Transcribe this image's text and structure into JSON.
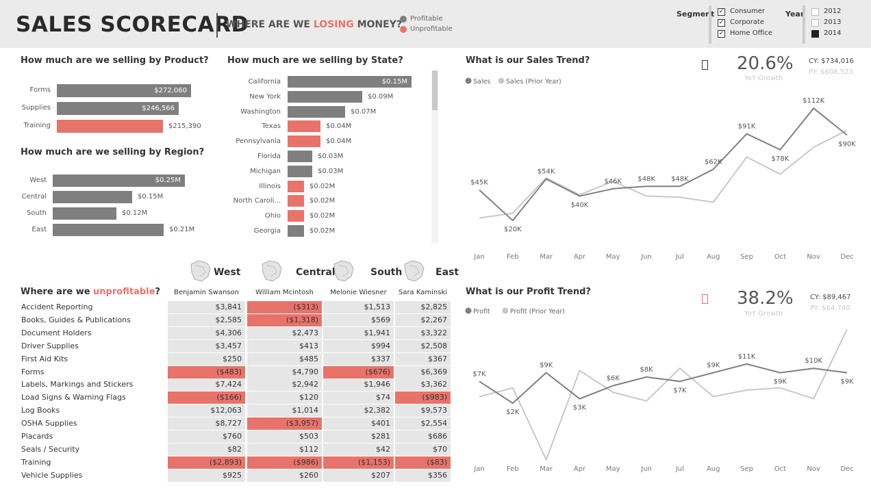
{
  "header": {
    "title": "SALES SCORECARD",
    "subtitle_prefix": "WHERE ARE WE ",
    "subtitle_highlight": "LOSING",
    "subtitle_suffix": " MONEY?",
    "legend": [
      {
        "label": "Profitable",
        "color": "#7f7f7f"
      },
      {
        "label": "Unprofitable",
        "color": "#e8736a"
      }
    ]
  },
  "slicers": {
    "segment": {
      "label": "Segment",
      "options": [
        {
          "label": "Consumer",
          "checked": true
        },
        {
          "label": "Corporate",
          "checked": true
        },
        {
          "label": "Home Office",
          "checked": true
        }
      ]
    },
    "year": {
      "label": "Year",
      "options": [
        {
          "label": "2012",
          "checked": false
        },
        {
          "label": "2013",
          "checked": false
        },
        {
          "label": "2014",
          "checked": true
        }
      ]
    }
  },
  "colors": {
    "profitable": "#7f7f7f",
    "unprofitable": "#e8736a",
    "prior_year": "#c8c8c8",
    "accent": "#e8736a"
  },
  "product": {
    "title": "How much are we selling by Product?",
    "items": [
      {
        "label": "Forms",
        "value": 272060,
        "display": "$272,060",
        "profitable": true
      },
      {
        "label": "Supplies",
        "value": 246566,
        "display": "$246,566",
        "profitable": true
      },
      {
        "label": "Training",
        "value": 215390,
        "display": "$215,390",
        "profitable": false
      }
    ]
  },
  "region": {
    "title": "How much are we selling by Region?",
    "items": [
      {
        "label": "West",
        "value": 0.25,
        "display": "$0.25M",
        "profitable": true
      },
      {
        "label": "Central",
        "value": 0.15,
        "display": "$0.15M",
        "profitable": true
      },
      {
        "label": "South",
        "value": 0.12,
        "display": "$0.12M",
        "profitable": true
      },
      {
        "label": "East",
        "value": 0.21,
        "display": "$0.21M",
        "profitable": true
      }
    ]
  },
  "state": {
    "title": "How much are we selling by State?",
    "items": [
      {
        "label": "California",
        "value": 0.15,
        "display": "$0.15M",
        "profitable": true
      },
      {
        "label": "New York",
        "value": 0.09,
        "display": "$0.09M",
        "profitable": true
      },
      {
        "label": "Washington",
        "value": 0.07,
        "display": "$0.07M",
        "profitable": true
      },
      {
        "label": "Texas",
        "value": 0.04,
        "display": "$0.04M",
        "profitable": false
      },
      {
        "label": "Pennsylvania",
        "value": 0.04,
        "display": "$0.04M",
        "profitable": false
      },
      {
        "label": "Florida",
        "value": 0.03,
        "display": "$0.03M",
        "profitable": true
      },
      {
        "label": "Michigan",
        "value": 0.03,
        "display": "$0.03M",
        "profitable": true
      },
      {
        "label": "Illinois",
        "value": 0.02,
        "display": "$0.02M",
        "profitable": false
      },
      {
        "label": "North Caroli...",
        "value": 0.02,
        "display": "$0.02M",
        "profitable": false
      },
      {
        "label": "Ohio",
        "value": 0.02,
        "display": "$0.02M",
        "profitable": false
      },
      {
        "label": "Georgia",
        "value": 0.02,
        "display": "$0.02M",
        "profitable": true
      }
    ]
  },
  "chart_data": [
    {
      "type": "line",
      "title": "What is our Sales Trend?",
      "x": [
        "Jan",
        "Feb",
        "Mar",
        "Apr",
        "May",
        "Jun",
        "Jul",
        "Aug",
        "Sep",
        "Oct",
        "Nov",
        "Dec"
      ],
      "series": [
        {
          "name": "Sales",
          "values": [
            45,
            20,
            54,
            40,
            46,
            48,
            48,
            62,
            91,
            78,
            112,
            90
          ],
          "labels": [
            "$45K",
            "$20K",
            "$54K",
            "$40K",
            "$46K",
            "$48K",
            "$48K",
            "$62K",
            "$91K",
            "$78K",
            "$112K",
            "$90K"
          ]
        },
        {
          "name": "Sales (Prior Year)",
          "values": [
            22,
            26,
            55,
            41,
            52,
            40,
            39,
            35,
            72,
            58,
            80,
            94
          ]
        }
      ],
      "ylim": [
        10,
        125
      ],
      "kpi": {
        "value": "20.6%",
        "label": "YoY Growth",
        "cy": "CY: $734,016",
        "py": "PY: $608,523"
      }
    },
    {
      "type": "line",
      "title": "What is our Profit Trend?",
      "x": [
        "Jan",
        "Feb",
        "Mar",
        "Apr",
        "May",
        "Jun",
        "Jul",
        "Aug",
        "Sep",
        "Oct",
        "Nov",
        "Dec"
      ],
      "series": [
        {
          "name": "Profit",
          "values": [
            7,
            2,
            9,
            3,
            6,
            8,
            7,
            9,
            11,
            9,
            10,
            9
          ],
          "labels": [
            "$7K",
            "$2K",
            "$9K",
            "$3K",
            "$6K",
            "$8K",
            "$7K",
            "$9K",
            "$11K",
            "$9K",
            "$10K",
            "$9K"
          ]
        },
        {
          "name": "Profit (Prior Year)",
          "values": [
            3.5,
            5.5,
            -11,
            9.5,
            4.5,
            2.5,
            10,
            3.5,
            5,
            5.5,
            3,
            19
          ]
        }
      ],
      "ylim": [
        -12,
        22
      ],
      "kpi": {
        "value": "38.2%",
        "label": "YoY Growth",
        "cy": "CY: $89,467",
        "py": "PY: $64,740"
      }
    }
  ],
  "unprofitable": {
    "title_prefix": "Where are we ",
    "title_highlight": "unprofitable",
    "title_suffix": "?",
    "regions": [
      {
        "name": "West",
        "manager": "Benjamin Swanson"
      },
      {
        "name": "Central",
        "manager": "William Mcintosh"
      },
      {
        "name": "South",
        "manager": "Melonie Wiesner"
      },
      {
        "name": "East",
        "manager": "Sara Kaminski"
      }
    ],
    "rows": [
      {
        "label": "Accident Reporting",
        "cells": [
          {
            "v": "$3,841",
            "neg": false
          },
          {
            "v": "($313)",
            "neg": true
          },
          {
            "v": "$1,513",
            "neg": false
          },
          {
            "v": "$2,825",
            "neg": false
          }
        ]
      },
      {
        "label": "Books, Guides & Publications",
        "cells": [
          {
            "v": "$2,585",
            "neg": false
          },
          {
            "v": "($1,318)",
            "neg": true
          },
          {
            "v": "$569",
            "neg": false
          },
          {
            "v": "$2,267",
            "neg": false
          }
        ]
      },
      {
        "label": "Document Holders",
        "cells": [
          {
            "v": "$4,306",
            "neg": false
          },
          {
            "v": "$2,473",
            "neg": false
          },
          {
            "v": "$1,941",
            "neg": false
          },
          {
            "v": "$3,322",
            "neg": false
          }
        ]
      },
      {
        "label": "Driver Supplies",
        "cells": [
          {
            "v": "$3,457",
            "neg": false
          },
          {
            "v": "$413",
            "neg": false
          },
          {
            "v": "$994",
            "neg": false
          },
          {
            "v": "$2,508",
            "neg": false
          }
        ]
      },
      {
        "label": "First Aid Kits",
        "cells": [
          {
            "v": "$250",
            "neg": false
          },
          {
            "v": "$485",
            "neg": false
          },
          {
            "v": "$337",
            "neg": false
          },
          {
            "v": "$367",
            "neg": false
          }
        ]
      },
      {
        "label": "Forms",
        "cells": [
          {
            "v": "($483)",
            "neg": true
          },
          {
            "v": "$4,790",
            "neg": false
          },
          {
            "v": "($676)",
            "neg": true
          },
          {
            "v": "$6,369",
            "neg": false
          }
        ]
      },
      {
        "label": "Labels, Markings and Stickers",
        "cells": [
          {
            "v": "$7,424",
            "neg": false
          },
          {
            "v": "$2,942",
            "neg": false
          },
          {
            "v": "$1,946",
            "neg": false
          },
          {
            "v": "$3,362",
            "neg": false
          }
        ]
      },
      {
        "label": "Load Signs & Warning Flags",
        "cells": [
          {
            "v": "($166)",
            "neg": true
          },
          {
            "v": "$120",
            "neg": false
          },
          {
            "v": "$74",
            "neg": false
          },
          {
            "v": "($983)",
            "neg": true
          }
        ]
      },
      {
        "label": "Log Books",
        "cells": [
          {
            "v": "$12,063",
            "neg": false
          },
          {
            "v": "$1,014",
            "neg": false
          },
          {
            "v": "$2,382",
            "neg": false
          },
          {
            "v": "$9,573",
            "neg": false
          }
        ]
      },
      {
        "label": "OSHA Supplies",
        "cells": [
          {
            "v": "$8,727",
            "neg": false
          },
          {
            "v": "($3,957)",
            "neg": true
          },
          {
            "v": "$401",
            "neg": false
          },
          {
            "v": "$2,554",
            "neg": false
          }
        ]
      },
      {
        "label": "Placards",
        "cells": [
          {
            "v": "$760",
            "neg": false
          },
          {
            "v": "$503",
            "neg": false
          },
          {
            "v": "$281",
            "neg": false
          },
          {
            "v": "$686",
            "neg": false
          }
        ]
      },
      {
        "label": "Seals / Security",
        "cells": [
          {
            "v": "$82",
            "neg": false
          },
          {
            "v": "$112",
            "neg": false
          },
          {
            "v": "$42",
            "neg": false
          },
          {
            "v": "$70",
            "neg": false
          }
        ]
      },
      {
        "label": "Training",
        "cells": [
          {
            "v": "($2,893)",
            "neg": true
          },
          {
            "v": "($986)",
            "neg": true
          },
          {
            "v": "($1,153)",
            "neg": true
          },
          {
            "v": "($83)",
            "neg": true
          }
        ]
      },
      {
        "label": "Vehicle Supplies",
        "cells": [
          {
            "v": "$925",
            "neg": false
          },
          {
            "v": "$260",
            "neg": false
          },
          {
            "v": "$207",
            "neg": false
          },
          {
            "v": "$356",
            "neg": false
          }
        ]
      }
    ]
  }
}
